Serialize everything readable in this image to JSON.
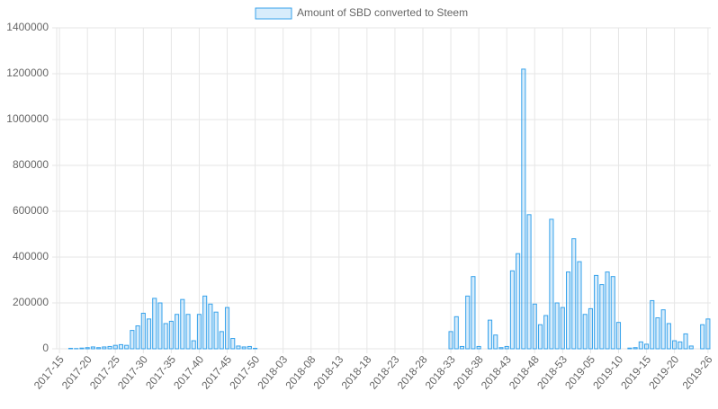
{
  "chart_data": {
    "type": "bar",
    "series": [
      {
        "name": "Amount of SBD converted to Steem",
        "color": "#36a2eb",
        "values": [
          0,
          0,
          2000,
          1000,
          3000,
          5000,
          8000,
          5000,
          8000,
          10000,
          15000,
          18000,
          15000,
          80000,
          100000,
          155000,
          130000,
          220000,
          200000,
          110000,
          120000,
          150000,
          215000,
          150000,
          35000,
          150000,
          230000,
          195000,
          160000,
          75000,
          180000,
          45000,
          12000,
          8000,
          10000,
          2000,
          0,
          0,
          0,
          0,
          0,
          0,
          0,
          0,
          0,
          0,
          0,
          0,
          0,
          0,
          0,
          0,
          0,
          0,
          0,
          0,
          0,
          0,
          0,
          0,
          0,
          0,
          0,
          0,
          0,
          0,
          0,
          0,
          0,
          0,
          75000,
          140000,
          10000,
          230000,
          315000,
          10000,
          0,
          125000,
          60000,
          5000,
          10000,
          340000,
          415000,
          1220000,
          585000,
          195000,
          105000,
          145000,
          565000,
          200000,
          180000,
          335000,
          480000,
          380000,
          150000,
          175000,
          320000,
          280000,
          335000,
          315000,
          115000,
          0,
          3000,
          5000,
          30000,
          20000,
          210000,
          135000,
          170000,
          110000,
          35000,
          30000,
          65000,
          12000,
          0,
          105000,
          130000
        ]
      }
    ],
    "categories": [
      "2017-15",
      null,
      null,
      null,
      null,
      "2017-20",
      null,
      null,
      null,
      null,
      "2017-25",
      null,
      null,
      null,
      null,
      "2017-30",
      null,
      null,
      null,
      null,
      "2017-35",
      null,
      null,
      null,
      null,
      "2017-40",
      null,
      null,
      null,
      null,
      "2017-45",
      null,
      null,
      null,
      null,
      "2017-50",
      null,
      null,
      null,
      null,
      "2018-03",
      null,
      null,
      null,
      null,
      "2018-08",
      null,
      null,
      null,
      null,
      "2018-13",
      null,
      null,
      null,
      null,
      "2018-18",
      null,
      null,
      null,
      null,
      "2018-23",
      null,
      null,
      null,
      null,
      "2018-28",
      null,
      null,
      null,
      null,
      "2018-33",
      null,
      null,
      null,
      null,
      "2018-38",
      null,
      null,
      null,
      null,
      "2018-43",
      null,
      null,
      null,
      null,
      "2018-48",
      null,
      null,
      null,
      null,
      "2018-53",
      null,
      null,
      null,
      null,
      "2019-05",
      null,
      null,
      null,
      null,
      "2019-10",
      null,
      null,
      null,
      null,
      "2019-15",
      null,
      null,
      null,
      null,
      "2019-20",
      null,
      null,
      null,
      null,
      null,
      "2019-26"
    ],
    "ylim": [
      0,
      1400000
    ],
    "yticks": [
      0,
      200000,
      400000,
      600000,
      800000,
      1000000,
      1200000,
      1400000
    ],
    "grid": true,
    "legend": "top"
  }
}
